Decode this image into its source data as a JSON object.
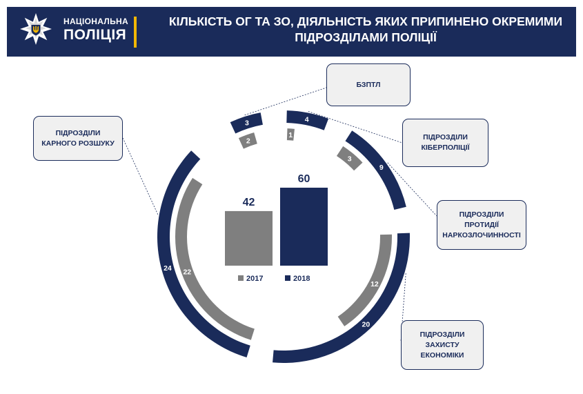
{
  "header": {
    "logo_line1": "НАЦІОНАЛЬНА",
    "logo_line2": "ПОЛІЦІЯ",
    "title": "КІЛЬКІСТЬ ОГ ТА ЗО, ДІЯЛЬНІСТЬ ЯКИХ ПРИПИНЕНО ОКРЕМИМИ ПІДРОЗДІЛАМИ ПОЛІЦІЇ"
  },
  "colors": {
    "header_bg": "#1a2b5a",
    "series_2018": "#1a2b5a",
    "series_2017": "#7f7f7f",
    "accent_bar": "#f2b705"
  },
  "chart_data": [
    {
      "type": "donut",
      "categories": [
        "БЗПТЛ",
        "ПІДРОЗДІЛИ КІБЕРПОЛІЦІЇ",
        "ПІДРОЗДІЛИ ПРОТИДІЇ НАРКОЗЛОЧИННОСТІ",
        "ПІДРОЗДІЛИ ЗАХИСТУ ЕКОНОМІКИ",
        "ПІДРОЗДІЛИ КАРНОГО РОЗШУКУ"
      ],
      "series": [
        {
          "name": "2018",
          "values": [
            3,
            4,
            9,
            20,
            24
          ]
        },
        {
          "name": "2017",
          "values": [
            2,
            1,
            3,
            12,
            22
          ]
        }
      ]
    },
    {
      "type": "bar",
      "categories": [
        "2017",
        "2018"
      ],
      "values": [
        42,
        60
      ],
      "legend": [
        "2017",
        "2018"
      ]
    }
  ]
}
